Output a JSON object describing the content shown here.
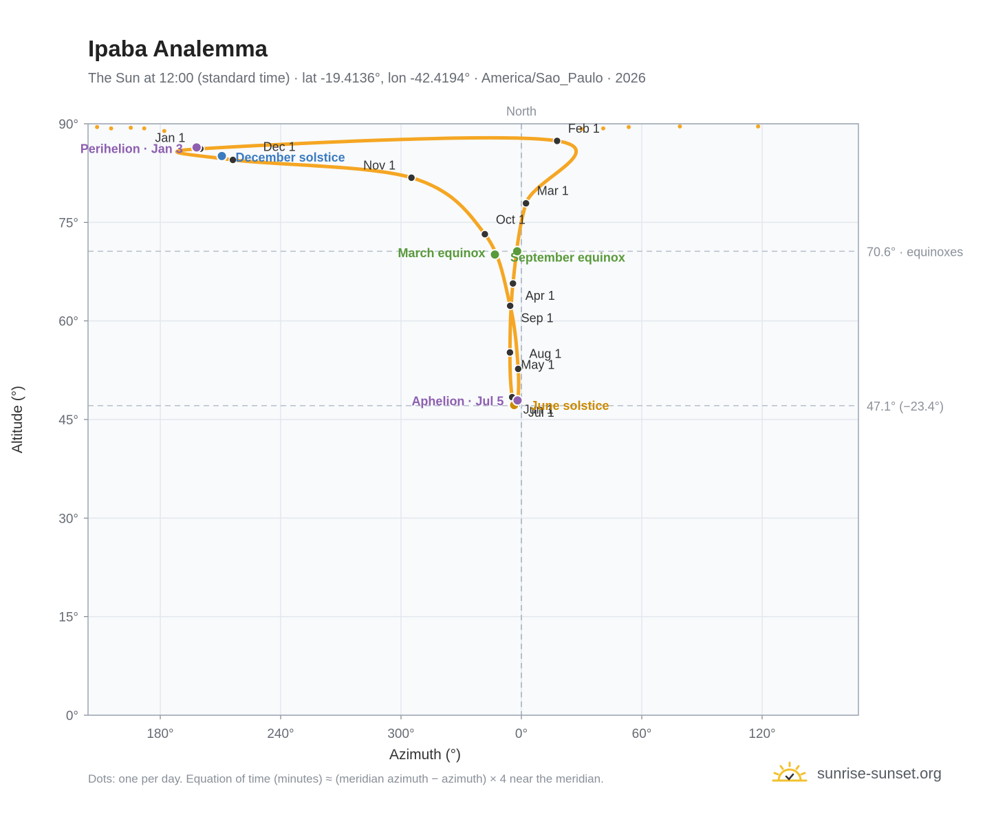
{
  "header": {
    "title": "Ipaba Analemma",
    "subtitle": "The Sun at 12:00 (standard time) · lat -19.4136°, lon -42.4194° · America/Sao_Paulo · 2026"
  },
  "footer": {
    "note": "Dots: one per day. Equation of time (minutes) ≈ (meridian azimuth − azimuth) × 4 near the meridian.",
    "brand": "sunrise-sunset.org"
  },
  "colors": {
    "curve": "#f5a623",
    "month_marker": "#333333",
    "march_equinox": "#5a9a3a",
    "september_equinox": "#5a9a3a",
    "june_solstice": "#cc8a00",
    "december_solstice": "#3b7bbf",
    "perihelion": "#8e5fb0",
    "aphelion": "#8e5fb0",
    "plot_background": "#f8fafc",
    "grid": "#e3e8ee",
    "reference_line": "#b6bec9"
  },
  "chart_data": {
    "type": "scatter",
    "xlabel": "Azimuth (°)",
    "ylabel": "Altitude (°)",
    "xlim": [
      144,
      168
    ],
    "xlim_note": "unwrapped azimuth; x axis runs 144° → 360°/0° → 168°",
    "ylim": [
      0,
      90
    ],
    "x_ticks": [
      "180°",
      "240°",
      "300°",
      "0°",
      "60°",
      "120°"
    ],
    "y_ticks": [
      "0°",
      "15°",
      "30°",
      "45°",
      "60°",
      "75°",
      "90°"
    ],
    "meridian_label": "North",
    "grid": true,
    "reference_lines": [
      {
        "altitude": 70.6,
        "label": "70.6° · equinoxes"
      },
      {
        "altitude": 47.1,
        "label": "47.1° (−23.4°)"
      }
    ],
    "month_markers": [
      {
        "label": "Jan 1",
        "azimuth": 200.0,
        "altitude": 86.2
      },
      {
        "label": "Feb 1",
        "azimuth": 17.8,
        "altitude": 87.4
      },
      {
        "label": "Mar 1",
        "azimuth": 2.3,
        "altitude": 77.9
      },
      {
        "label": "Apr 1",
        "azimuth": 355.8,
        "altitude": 65.7
      },
      {
        "label": "May 1",
        "azimuth": 354.3,
        "altitude": 55.2
      },
      {
        "label": "Jun 1",
        "azimuth": 355.4,
        "altitude": 48.4
      },
      {
        "label": "Jul 1",
        "azimuth": 357.9,
        "altitude": 47.3
      },
      {
        "label": "Aug 1",
        "azimuth": 358.4,
        "altitude": 52.7
      },
      {
        "label": "Sep 1",
        "azimuth": 354.4,
        "altitude": 62.3
      },
      {
        "label": "Oct 1",
        "azimuth": 341.8,
        "altitude": 73.2
      },
      {
        "label": "Nov 1",
        "azimuth": 305.2,
        "altitude": 81.8
      },
      {
        "label": "Dec 1",
        "azimuth": 216.2,
        "altitude": 84.5
      }
    ],
    "events": [
      {
        "label": "March equinox",
        "azimuth": 346.8,
        "altitude": 70.1
      },
      {
        "label": "September equinox",
        "azimuth": 357.9,
        "altitude": 70.6
      },
      {
        "label": "June solstice",
        "azimuth": 356.4,
        "altitude": 47.2
      },
      {
        "label": "December solstice",
        "azimuth": 210.7,
        "altitude": 85.1
      },
      {
        "label": "Perihelion · Jan 3",
        "azimuth": 198.1,
        "altitude": 86.4
      },
      {
        "label": "Aphelion · Jul 5",
        "azimuth": 358.1,
        "altitude": 47.9
      }
    ],
    "sparse_points": [
      {
        "azimuth": 155.5,
        "altitude": 89.3
      },
      {
        "azimuth": 165.3,
        "altitude": 89.4
      },
      {
        "azimuth": 172.0,
        "altitude": 89.3
      },
      {
        "azimuth": 182.0,
        "altitude": 88.9
      },
      {
        "azimuth": 30.0,
        "altitude": 89.2
      },
      {
        "azimuth": 40.8,
        "altitude": 89.3
      },
      {
        "azimuth": 53.5,
        "altitude": 89.5
      },
      {
        "azimuth": 79.0,
        "altitude": 89.6
      },
      {
        "azimuth": 118.0,
        "altitude": 89.6
      },
      {
        "azimuth": 148.5,
        "altitude": 89.5
      }
    ]
  }
}
